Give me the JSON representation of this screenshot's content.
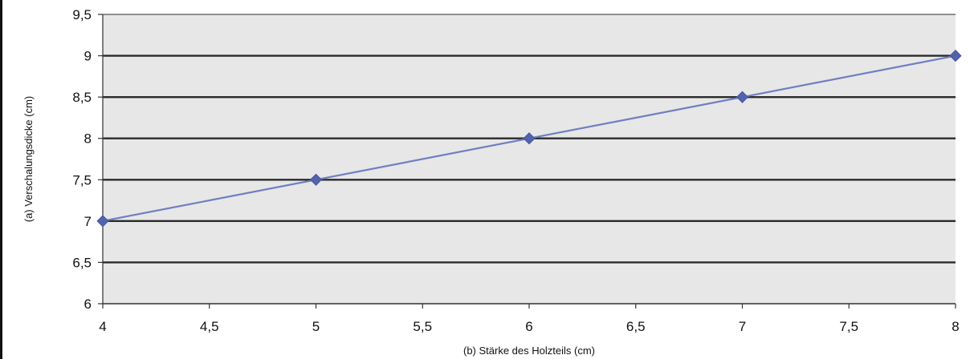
{
  "chart_data": {
    "type": "line",
    "title": "",
    "xlabel": "(b) Stärke des Holzteils (cm)",
    "ylabel": "(a) Verschalungsdicke (cm)",
    "xlim": [
      4,
      8
    ],
    "ylim": [
      6,
      9.5
    ],
    "x_ticks": [
      "4",
      "4,5",
      "5",
      "5,5",
      "6",
      "6,5",
      "7",
      "7,5",
      "8"
    ],
    "y_ticks": [
      "6",
      "6,5",
      "7",
      "7,5",
      "8",
      "8,5",
      "9",
      "9,5"
    ],
    "grid": true,
    "legend": "none",
    "series": [
      {
        "x": [
          4,
          5,
          6,
          7,
          8
        ],
        "values": [
          7,
          7.5,
          8,
          8.5,
          9
        ]
      }
    ],
    "colors": {
      "line": "#6f7fc0",
      "marker": "#5163ad",
      "grid": "#2a2a2a",
      "plot_bg": "#e7e7e7"
    }
  }
}
